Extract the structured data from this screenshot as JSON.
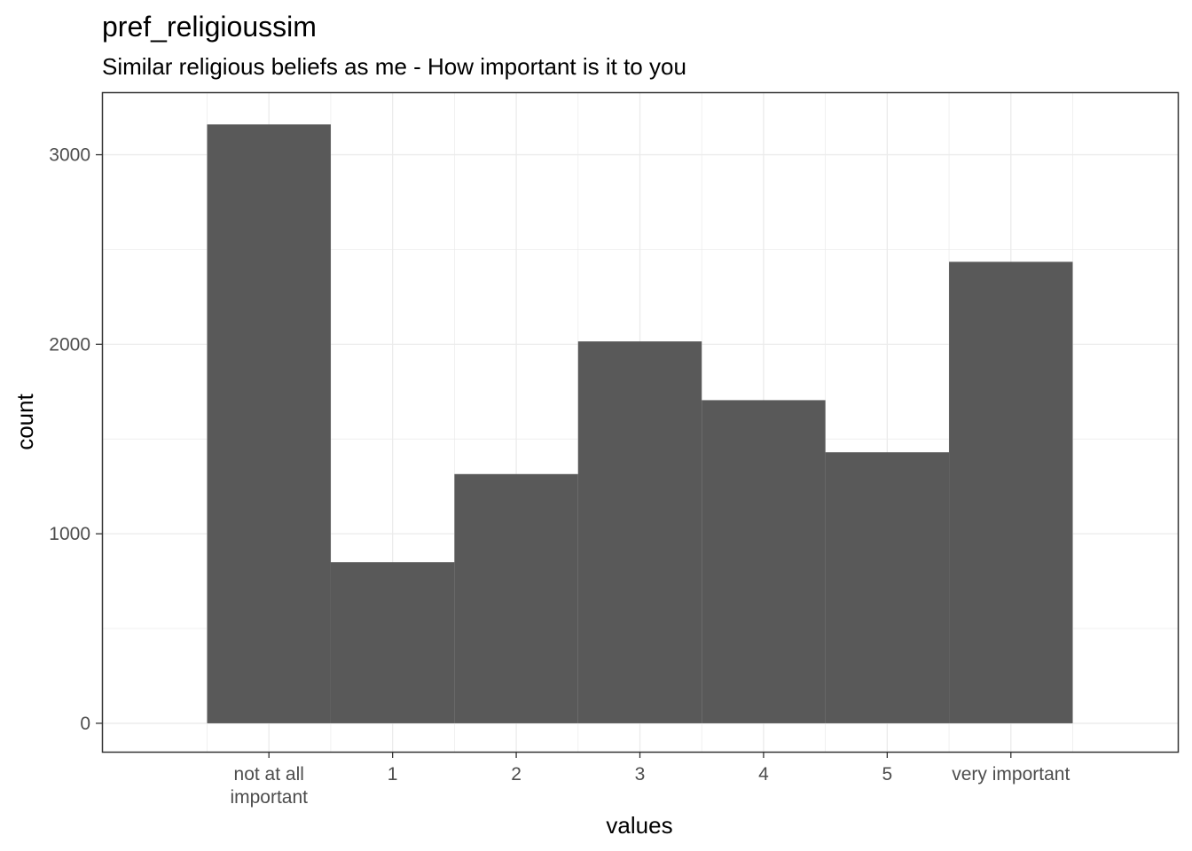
{
  "chart_data": {
    "type": "bar",
    "title": "pref_religioussim",
    "subtitle": "Similar religious beliefs as me - How important is it to you",
    "xlabel": "values",
    "ylabel": "count",
    "categories": [
      "not at all\nimportant",
      "1",
      "2",
      "3",
      "4",
      "5",
      "very important"
    ],
    "values": [
      3160,
      850,
      1315,
      2015,
      1705,
      1430,
      2435
    ],
    "ylim": [
      -150,
      3330
    ],
    "yticks": [
      0,
      1000,
      2000,
      3000
    ],
    "grid": true,
    "bar_color": "#595959",
    "grid_color": "#ebebeb",
    "panel_border_color": "#333333"
  }
}
